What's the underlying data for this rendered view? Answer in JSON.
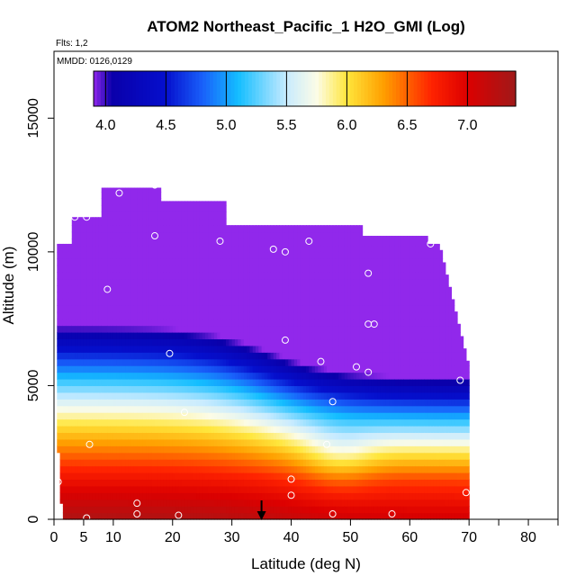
{
  "chart_data": {
    "type": "heatmap",
    "title": "ATOM2 Northeast_Pacific_1 H2O_GMI (Log)",
    "flights_label": "Flts: 1,2",
    "date_label": "MMDD: 0126,0129",
    "xlabel": "Latitude (deg N)",
    "ylabel": "Altitude (m)",
    "xlim": [
      0,
      85
    ],
    "ylim": [
      0,
      17500
    ],
    "x_ticks": [
      0,
      5,
      10,
      20,
      30,
      40,
      50,
      60,
      70,
      80
    ],
    "x_minor_ticks": [
      75,
      85
    ],
    "y_ticks": [
      0,
      5000,
      10000,
      15000
    ],
    "colorbar": {
      "range": [
        3.9,
        7.4
      ],
      "ticks": [
        4.0,
        4.5,
        5.0,
        5.5,
        6.0,
        6.5,
        7.0
      ],
      "tick_labels": [
        "4.0",
        "4.5",
        "5.0",
        "5.5",
        "6.0",
        "6.5",
        "7.0"
      ]
    },
    "arrow_latitude": 35,
    "field": {
      "lat_range": [
        0.5,
        70
      ],
      "alt_range": [
        0,
        12500
      ],
      "description_value_range": [
        3.9,
        7.4
      ]
    },
    "sample_points": [
      {
        "lat": 0.5,
        "alt": 200
      },
      {
        "lat": 5.5,
        "alt": 50
      },
      {
        "lat": 14,
        "alt": 200
      },
      {
        "lat": 21,
        "alt": 150
      },
      {
        "lat": 14,
        "alt": 600
      },
      {
        "lat": 0.7,
        "alt": 1400
      },
      {
        "lat": 6,
        "alt": 2800
      },
      {
        "lat": 22,
        "alt": 4000
      },
      {
        "lat": 40,
        "alt": 1500
      },
      {
        "lat": 40,
        "alt": 900
      },
      {
        "lat": 46,
        "alt": 2800
      },
      {
        "lat": 47,
        "alt": 200
      },
      {
        "lat": 57,
        "alt": 200
      },
      {
        "lat": 69.5,
        "alt": 1000
      },
      {
        "lat": 47,
        "alt": 4400
      },
      {
        "lat": 53,
        "alt": 5500
      },
      {
        "lat": 51,
        "alt": 5700
      },
      {
        "lat": 45,
        "alt": 5900
      },
      {
        "lat": 68.5,
        "alt": 5200
      },
      {
        "lat": 53,
        "alt": 7300
      },
      {
        "lat": 54,
        "alt": 7300
      },
      {
        "lat": 39,
        "alt": 6700
      },
      {
        "lat": 19.5,
        "alt": 6200
      },
      {
        "lat": 9,
        "alt": 8600
      },
      {
        "lat": 53,
        "alt": 9200
      },
      {
        "lat": 37,
        "alt": 10100
      },
      {
        "lat": 39,
        "alt": 10000
      },
      {
        "lat": 43,
        "alt": 10400
      },
      {
        "lat": 28,
        "alt": 10400
      },
      {
        "lat": 17,
        "alt": 10600
      },
      {
        "lat": 3.5,
        "alt": 11300
      },
      {
        "lat": 5.5,
        "alt": 11300
      },
      {
        "lat": 11,
        "alt": 12200
      },
      {
        "lat": 17,
        "alt": 12500
      },
      {
        "lat": 63.5,
        "alt": 10300
      }
    ]
  }
}
